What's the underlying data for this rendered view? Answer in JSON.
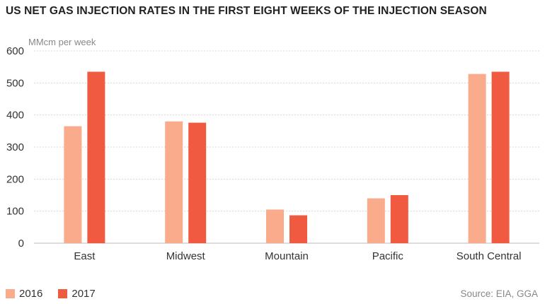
{
  "chart_data": {
    "type": "bar",
    "title": "US NET GAS INJECTION RATES IN THE FIRST EIGHT WEEKS OF THE INJECTION SEASON",
    "ylabel": "MMcm per week",
    "categories": [
      "East",
      "Midwest",
      "Mountain",
      "Pacific",
      "South Central"
    ],
    "series": [
      {
        "name": "2016",
        "color": "#f9ab8c",
        "values": [
          365,
          380,
          105,
          140,
          528
        ]
      },
      {
        "name": "2017",
        "color": "#f05a40",
        "values": [
          535,
          376,
          87,
          150,
          535
        ]
      }
    ],
    "ylim": [
      0,
      600
    ],
    "yticks": [
      0,
      100,
      200,
      300,
      400,
      500,
      600
    ],
    "grid": true,
    "legend": "bottom-left"
  },
  "source": "Source: EIA, GGA"
}
